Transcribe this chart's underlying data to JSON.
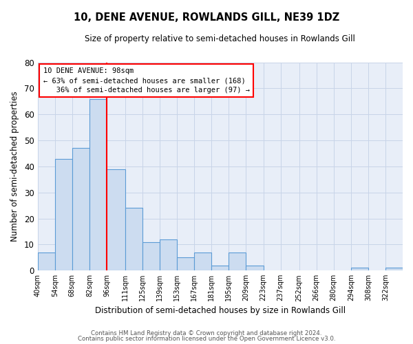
{
  "title": "10, DENE AVENUE, ROWLANDS GILL, NE39 1DZ",
  "subtitle": "Size of property relative to semi-detached houses in Rowlands Gill",
  "xlabel": "Distribution of semi-detached houses by size in Rowlands Gill",
  "ylabel": "Number of semi-detached properties",
  "bar_labels": [
    "40sqm",
    "54sqm",
    "68sqm",
    "82sqm",
    "96sqm",
    "111sqm",
    "125sqm",
    "139sqm",
    "153sqm",
    "167sqm",
    "181sqm",
    "195sqm",
    "209sqm",
    "223sqm",
    "237sqm",
    "252sqm",
    "266sqm",
    "280sqm",
    "294sqm",
    "308sqm",
    "322sqm"
  ],
  "bar_values": [
    7,
    43,
    47,
    66,
    39,
    24,
    11,
    12,
    5,
    7,
    2,
    7,
    2,
    0,
    0,
    0,
    0,
    0,
    1,
    0,
    1
  ],
  "bar_color": "#ccdcf0",
  "bar_edgecolor": "#5b9bd5",
  "property_line_x": 96,
  "bin_edges": [
    40,
    54,
    68,
    82,
    96,
    111,
    125,
    139,
    153,
    167,
    181,
    195,
    209,
    223,
    237,
    252,
    266,
    280,
    294,
    308,
    322,
    336
  ],
  "annotation_title": "10 DENE AVENUE: 98sqm",
  "annotation_line1": "← 63% of semi-detached houses are smaller (168)",
  "annotation_line2": "   36% of semi-detached houses are larger (97) →",
  "ylim": [
    0,
    80
  ],
  "yticks": [
    0,
    10,
    20,
    30,
    40,
    50,
    60,
    70,
    80
  ],
  "background_color": "#ffffff",
  "plot_bg_color": "#e8eef8",
  "grid_color": "#c8d4e8",
  "footer_line1": "Contains HM Land Registry data © Crown copyright and database right 2024.",
  "footer_line2": "Contains public sector information licensed under the Open Government Licence v3.0."
}
